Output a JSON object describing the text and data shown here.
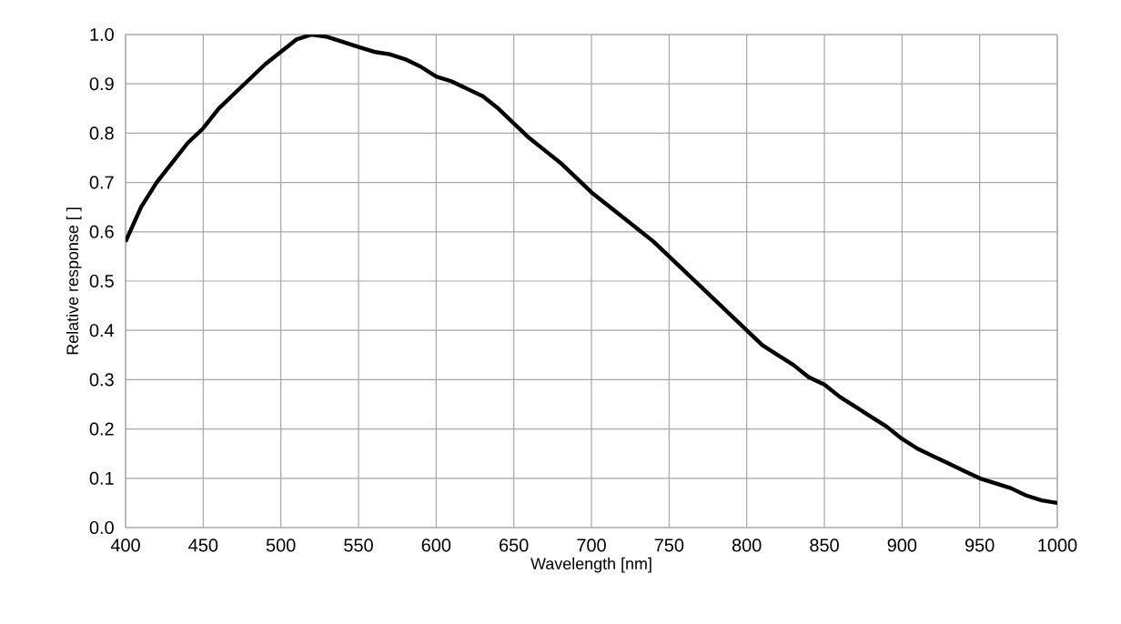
{
  "chart_data": {
    "type": "line",
    "xlabel": "Wavelength [nm]",
    "ylabel": "Relative response [ ]",
    "x": [
      400,
      410,
      420,
      430,
      440,
      450,
      460,
      470,
      480,
      490,
      500,
      510,
      520,
      530,
      540,
      550,
      560,
      570,
      580,
      590,
      600,
      610,
      620,
      630,
      640,
      650,
      660,
      670,
      680,
      690,
      700,
      710,
      720,
      730,
      740,
      750,
      760,
      770,
      780,
      790,
      800,
      810,
      820,
      830,
      840,
      850,
      860,
      870,
      880,
      890,
      900,
      910,
      920,
      930,
      940,
      950,
      960,
      970,
      980,
      990,
      1000
    ],
    "series": [
      {
        "color": "#000000",
        "values": [
          0.58,
          0.65,
          0.7,
          0.74,
          0.78,
          0.81,
          0.85,
          0.88,
          0.91,
          0.94,
          0.965,
          0.99,
          1.0,
          0.995,
          0.985,
          0.975,
          0.965,
          0.96,
          0.95,
          0.935,
          0.915,
          0.905,
          0.89,
          0.875,
          0.85,
          0.82,
          0.79,
          0.765,
          0.74,
          0.71,
          0.68,
          0.655,
          0.63,
          0.605,
          0.58,
          0.55,
          0.52,
          0.49,
          0.46,
          0.43,
          0.4,
          0.37,
          0.35,
          0.33,
          0.305,
          0.29,
          0.265,
          0.245,
          0.225,
          0.205,
          0.18,
          0.16,
          0.145,
          0.13,
          0.115,
          0.1,
          0.09,
          0.08,
          0.065,
          0.055,
          0.05
        ]
      }
    ],
    "xlim": [
      400,
      1000
    ],
    "ylim": [
      0,
      1
    ],
    "xticks": [
      400,
      450,
      500,
      550,
      600,
      650,
      700,
      750,
      800,
      850,
      900,
      950,
      1000
    ],
    "yticks": [
      {
        "value": 0,
        "label": "0.0"
      },
      {
        "value": 0.1,
        "label": "0.1"
      },
      {
        "value": 0.2,
        "label": "0.2"
      },
      {
        "value": 0.3,
        "label": "0.3"
      },
      {
        "value": 0.4,
        "label": "0.4"
      },
      {
        "value": 0.5,
        "label": "0.5"
      },
      {
        "value": 0.6,
        "label": "0.6"
      },
      {
        "value": 0.7,
        "label": "0.7"
      },
      {
        "value": 0.8,
        "label": "0.8"
      },
      {
        "value": 0.9,
        "label": "0.9"
      },
      {
        "value": 1,
        "label": "1.0"
      }
    ],
    "grid": true,
    "marker": "none",
    "line_style": "solid"
  }
}
